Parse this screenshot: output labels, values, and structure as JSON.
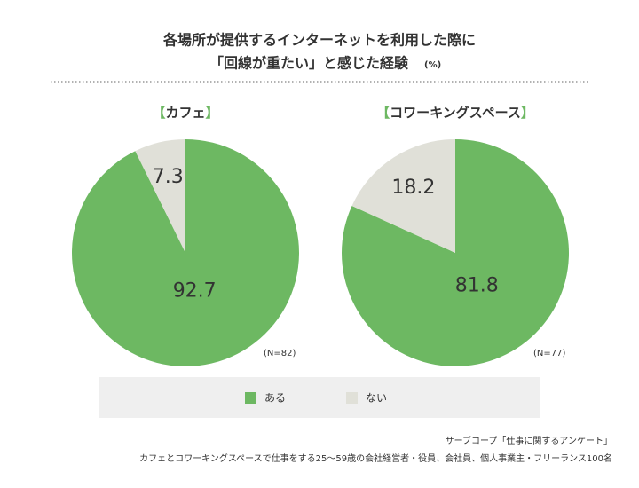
{
  "header": {
    "title_line1": "各場所が提供するインターネットを利用した際に",
    "title_line2": "「回線が重たい」と感じた経験",
    "unit": "(%)"
  },
  "chart_data": [
    {
      "type": "pie",
      "title": "カフェ",
      "title_marks": [
        "【",
        "】"
      ],
      "categories": [
        "ある",
        "ない"
      ],
      "values": [
        92.7,
        7.3
      ],
      "colors": [
        "#6db862",
        "#e0e0d8"
      ],
      "note": "(N=82)"
    },
    {
      "type": "pie",
      "title": "コワーキングスペース",
      "title_marks": [
        "【",
        "】"
      ],
      "categories": [
        "ある",
        "ない"
      ],
      "values": [
        81.8,
        18.2
      ],
      "colors": [
        "#6db862",
        "#e0e0d8"
      ],
      "note": "(N=77)"
    }
  ],
  "footer": {
    "line1": "サーブコープ「仕事に関するアンケート」",
    "line2": "カフェとコワーキングスペースで仕事をする25〜59歳の会社経営者・役員、会社員、個人事業主・フリーランス100名"
  }
}
